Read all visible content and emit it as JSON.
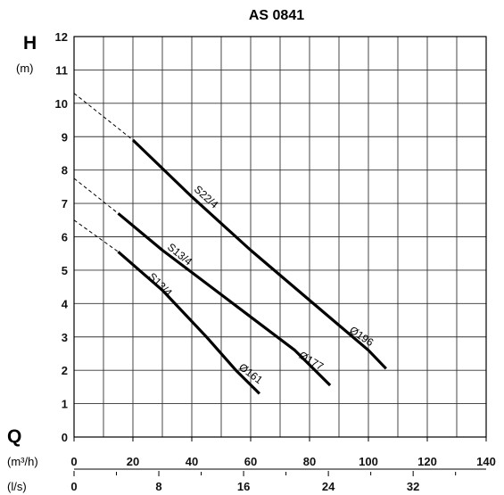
{
  "chart_data": {
    "type": "line",
    "title": "AS 0841",
    "y_axis": {
      "symbol": "H",
      "unit": "(m)",
      "range": [
        0,
        12
      ],
      "ticks": [
        "0",
        "1",
        "2",
        "3",
        "4",
        "5",
        "6",
        "7",
        "8",
        "9",
        "10",
        "11",
        "12"
      ]
    },
    "x_axis": {
      "symbol": "Q",
      "primary": {
        "unit": "(m³/h)",
        "range": [
          0,
          140
        ],
        "ticks": [
          "0",
          "20",
          "40",
          "60",
          "80",
          "100",
          "120",
          "140"
        ]
      },
      "secondary": {
        "unit": "(l/s)",
        "ticks": [
          "0",
          "8",
          "16",
          "24",
          "32"
        ]
      }
    },
    "grid": true,
    "series": [
      {
        "motor_label": "S22/4",
        "impeller_label": "Ø196",
        "solid": [
          [
            20,
            8.9
          ],
          [
            40,
            7.2
          ],
          [
            60,
            5.6
          ],
          [
            80,
            4.1
          ],
          [
            100,
            2.6
          ],
          [
            106,
            2.05
          ]
        ],
        "dashed": [
          [
            0,
            10.3
          ],
          [
            20,
            8.9
          ]
        ]
      },
      {
        "motor_label": "S13/4",
        "impeller_label": "Ø177",
        "solid": [
          [
            15,
            6.7
          ],
          [
            30,
            5.6
          ],
          [
            45,
            4.6
          ],
          [
            60,
            3.6
          ],
          [
            75,
            2.6
          ],
          [
            87,
            1.55
          ]
        ],
        "dashed": [
          [
            0,
            7.75
          ],
          [
            15,
            6.7
          ]
        ]
      },
      {
        "motor_label": "S13/4",
        "impeller_label": "Ø161",
        "solid": [
          [
            15,
            5.55
          ],
          [
            30,
            4.4
          ],
          [
            45,
            3.0
          ],
          [
            55,
            2.0
          ],
          [
            63,
            1.3
          ]
        ],
        "dashed": [
          [
            0,
            6.5
          ],
          [
            15,
            5.55
          ]
        ]
      }
    ]
  }
}
